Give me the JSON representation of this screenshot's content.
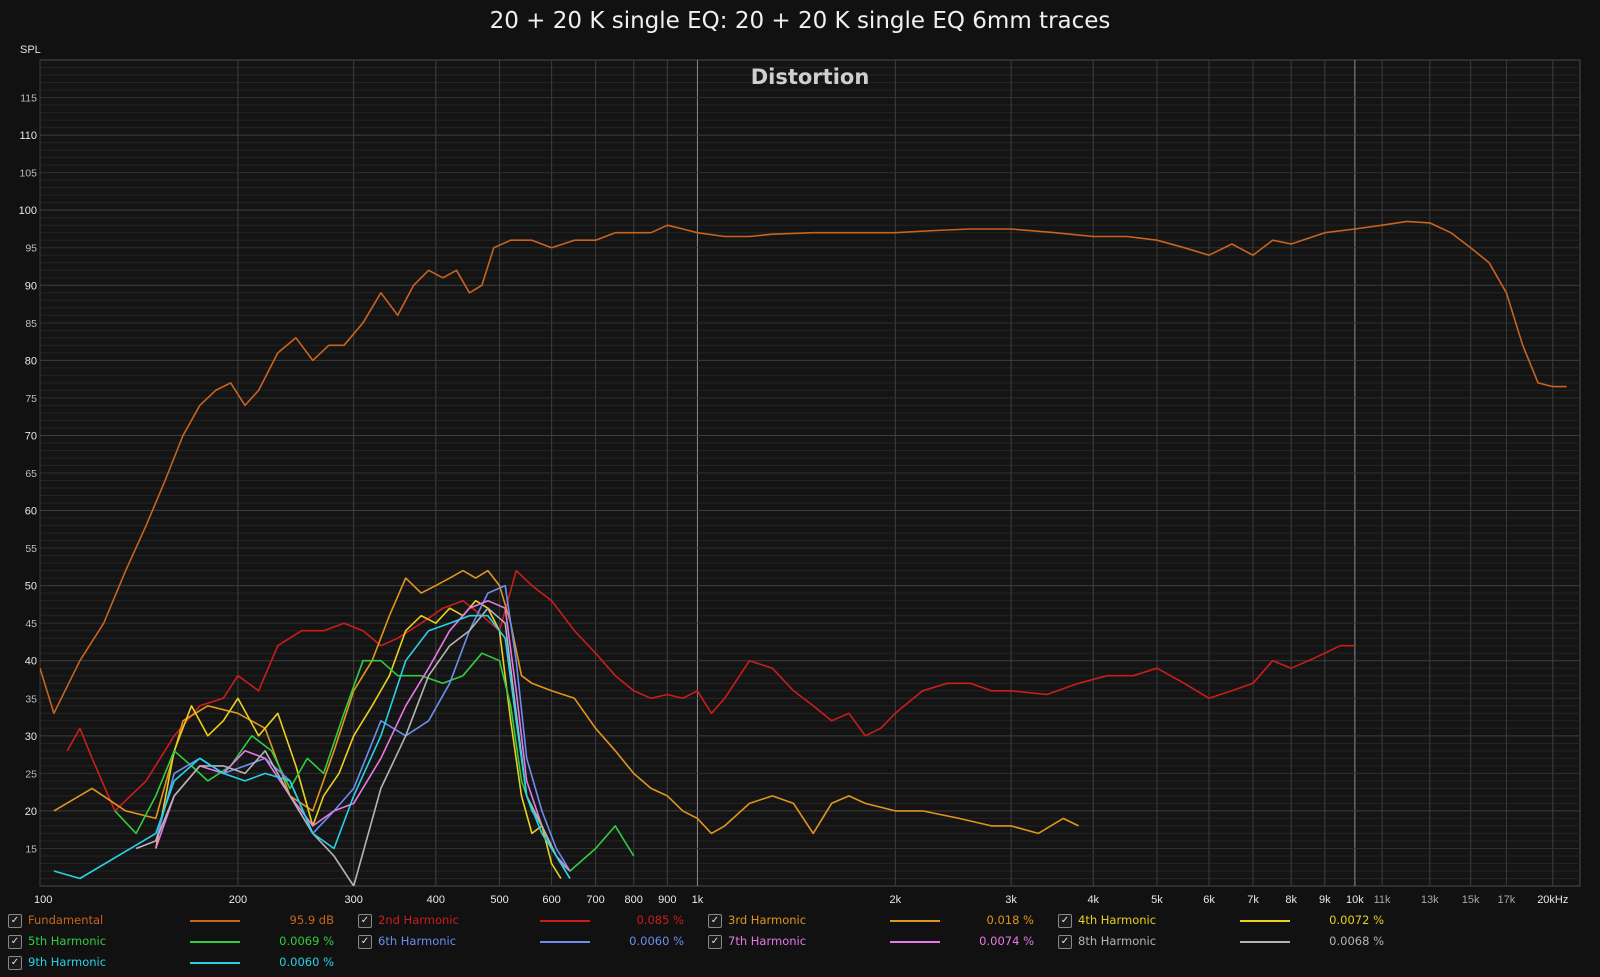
{
  "title": "20 + 20 K single EQ: 20 + 20 K single EQ 6mm traces",
  "chart_data": {
    "type": "line",
    "title": "Distortion",
    "ylabel": "SPL",
    "xunit": "kHz",
    "xscale": "log",
    "xlim": [
      100,
      22000
    ],
    "ylim": [
      10,
      120
    ],
    "grid": true,
    "legend_position": "bottom",
    "x_ticks": [
      {
        "value": 100,
        "label": "100"
      },
      {
        "value": 200,
        "label": "200"
      },
      {
        "value": 300,
        "label": "300"
      },
      {
        "value": 400,
        "label": "400"
      },
      {
        "value": 500,
        "label": "500"
      },
      {
        "value": 600,
        "label": "600"
      },
      {
        "value": 700,
        "label": "700"
      },
      {
        "value": 800,
        "label": "800"
      },
      {
        "value": 900,
        "label": "900"
      },
      {
        "value": 1000,
        "label": "1k"
      },
      {
        "value": 2000,
        "label": "2k"
      },
      {
        "value": 3000,
        "label": "3k"
      },
      {
        "value": 4000,
        "label": "4k"
      },
      {
        "value": 5000,
        "label": "5k"
      },
      {
        "value": 6000,
        "label": "6k"
      },
      {
        "value": 7000,
        "label": "7k"
      },
      {
        "value": 8000,
        "label": "8k"
      },
      {
        "value": 9000,
        "label": "9k"
      },
      {
        "value": 10000,
        "label": "10k"
      },
      {
        "value": 11000,
        "label": "11k"
      },
      {
        "value": 13000,
        "label": "13k"
      },
      {
        "value": 15000,
        "label": "15k"
      },
      {
        "value": 17000,
        "label": "17k"
      },
      {
        "value": 20000,
        "label": "20kHz"
      }
    ],
    "y_ticks": [
      15,
      20,
      25,
      30,
      35,
      40,
      45,
      50,
      55,
      60,
      65,
      70,
      75,
      80,
      85,
      90,
      95,
      100,
      105,
      110,
      115
    ],
    "series": [
      {
        "name": "Fundamental",
        "value": "95.9 dB",
        "color": "#c8641e",
        "x": [
          100,
          105,
          115,
          125,
          135,
          145,
          155,
          165,
          175,
          185,
          195,
          205,
          215,
          230,
          245,
          260,
          275,
          290,
          310,
          330,
          350,
          370,
          390,
          410,
          430,
          450,
          470,
          490,
          520,
          560,
          600,
          650,
          700,
          750,
          800,
          850,
          900,
          950,
          1000,
          1100,
          1200,
          1300,
          1500,
          1700,
          2000,
          2300,
          2600,
          3000,
          3500,
          4000,
          4500,
          5000,
          5500,
          6000,
          6500,
          7000,
          7500,
          8000,
          9000,
          10000,
          11000,
          12000,
          13000,
          14000,
          15000,
          16000,
          17000,
          18000,
          19000,
          20000,
          21000
        ],
        "y": [
          39,
          33,
          40,
          45,
          52,
          58,
          64,
          70,
          74,
          76,
          77,
          74,
          76,
          81,
          83,
          80,
          82,
          82,
          85,
          89,
          86,
          90,
          92,
          91,
          92,
          89,
          90,
          95,
          96,
          96,
          95,
          96,
          96,
          97,
          97,
          97,
          98,
          97.5,
          97,
          96.5,
          96.5,
          96.8,
          97,
          97,
          97,
          97.3,
          97.5,
          97.5,
          97,
          96.5,
          96.5,
          96,
          95,
          94,
          95.5,
          94,
          96,
          95.5,
          97,
          97.5,
          98,
          98.5,
          98.3,
          97,
          95,
          93,
          89,
          82,
          77,
          76.5,
          76.5
        ]
      },
      {
        "name": "2nd Harmonic",
        "value": "0.085 %",
        "color": "#cc1c1c",
        "x": [
          110,
          115,
          120,
          130,
          145,
          160,
          175,
          190,
          200,
          215,
          230,
          250,
          270,
          290,
          310,
          330,
          350,
          380,
          410,
          440,
          470,
          500,
          530,
          560,
          600,
          650,
          700,
          750,
          800,
          850,
          900,
          950,
          1000,
          1050,
          1100,
          1200,
          1300,
          1400,
          1500,
          1600,
          1700,
          1800,
          1900,
          2000,
          2200,
          2400,
          2600,
          2800,
          3000,
          3400,
          3800,
          4200,
          4600,
          5000,
          5500,
          6000,
          6500,
          7000,
          7500,
          8000,
          8500,
          9000,
          9500,
          10000
        ],
        "y": [
          28,
          31,
          27,
          20,
          24,
          30,
          34,
          35,
          38,
          36,
          42,
          44,
          44,
          45,
          44,
          42,
          43,
          45,
          47,
          48,
          46,
          44,
          52,
          50,
          48,
          44,
          41,
          38,
          36,
          35,
          35.5,
          35,
          36,
          33,
          35,
          40,
          39,
          36,
          34,
          32,
          33,
          30,
          31,
          33,
          36,
          37,
          37,
          36,
          36,
          35.5,
          37,
          38,
          38,
          39,
          37,
          35,
          36,
          37,
          40,
          39,
          40,
          41,
          42,
          42
        ]
      },
      {
        "name": "3rd Harmonic",
        "value": "0.018 %",
        "color": "#e0951c",
        "x": [
          105,
          120,
          135,
          150,
          165,
          180,
          200,
          220,
          240,
          260,
          280,
          300,
          320,
          340,
          360,
          380,
          400,
          420,
          440,
          460,
          480,
          500,
          520,
          540,
          560,
          600,
          650,
          700,
          750,
          800,
          850,
          900,
          950,
          1000,
          1050,
          1100,
          1200,
          1300,
          1400,
          1500,
          1600,
          1700,
          1800,
          2000,
          2200,
          2500,
          2800,
          3000,
          3300,
          3600,
          3800
        ],
        "y": [
          20,
          23,
          20,
          19,
          32,
          34,
          33,
          31,
          22,
          20,
          28,
          36,
          40,
          46,
          51,
          49,
          50,
          51,
          52,
          51,
          52,
          50,
          45,
          38,
          37,
          36,
          35,
          31,
          28,
          25,
          23,
          22,
          20,
          19,
          17,
          18,
          21,
          22,
          21,
          17,
          21,
          22,
          21,
          20,
          20,
          19,
          18,
          18,
          17,
          19,
          18
        ]
      },
      {
        "name": "4th Harmonic",
        "value": "0.0072 %",
        "color": "#e8d020",
        "x": [
          150,
          160,
          170,
          180,
          190,
          200,
          215,
          230,
          245,
          260,
          270,
          285,
          300,
          320,
          340,
          360,
          380,
          400,
          420,
          440,
          460,
          480,
          500,
          520,
          540,
          560,
          580,
          600,
          620
        ],
        "y": [
          15,
          28,
          34,
          30,
          32,
          35,
          30,
          33,
          26,
          18,
          22,
          25,
          30,
          34,
          38,
          44,
          46,
          45,
          47,
          46,
          48,
          47,
          44,
          32,
          22,
          17,
          18,
          13,
          11
        ]
      },
      {
        "name": "5th Harmonic",
        "value": "0.0069 %",
        "color": "#32cc40",
        "x": [
          130,
          140,
          150,
          160,
          170,
          180,
          195,
          210,
          225,
          240,
          255,
          270,
          290,
          310,
          330,
          350,
          380,
          410,
          440,
          470,
          500,
          520,
          540,
          560,
          580,
          600,
          620,
          640,
          700,
          750,
          800
        ],
        "y": [
          20,
          17,
          22,
          28,
          26,
          24,
          26,
          30,
          28,
          23,
          27,
          25,
          33,
          40,
          40,
          38,
          38,
          37,
          38,
          41,
          40,
          34,
          24,
          20,
          18,
          15,
          13,
          12,
          15,
          18,
          14
        ]
      },
      {
        "name": "6th Harmonic",
        "value": "0.0060 %",
        "color": "#6c8ef0",
        "x": [
          150,
          160,
          175,
          190,
          205,
          220,
          240,
          260,
          280,
          300,
          330,
          360,
          390,
          420,
          450,
          480,
          510,
          530,
          550,
          580,
          610,
          640
        ],
        "y": [
          16,
          25,
          27,
          25,
          26,
          27,
          24,
          17,
          20,
          23,
          32,
          30,
          32,
          37,
          44,
          49,
          50,
          40,
          27,
          20,
          15,
          12
        ]
      },
      {
        "name": "7th Harmonic",
        "value": "0.0074 %",
        "color": "#e878e8",
        "x": [
          150,
          160,
          175,
          190,
          205,
          220,
          240,
          260,
          280,
          300,
          330,
          360,
          390,
          420,
          450,
          480,
          510,
          530,
          550,
          580,
          610,
          640
        ],
        "y": [
          15,
          22,
          26,
          25,
          28,
          27,
          22,
          18,
          20,
          21,
          27,
          34,
          39,
          44,
          47,
          48,
          47,
          36,
          24,
          18,
          14,
          12
        ]
      },
      {
        "name": "8th Harmonic",
        "value": "0.0068 %",
        "color": "#b4b4b4",
        "x": [
          140,
          150,
          160,
          175,
          190,
          205,
          220,
          240,
          260,
          280,
          300,
          330,
          360,
          390,
          420,
          450,
          480,
          510,
          530,
          550,
          580,
          610,
          640
        ],
        "y": [
          15,
          16,
          22,
          26,
          26,
          25,
          28,
          22,
          17,
          14,
          10,
          23,
          30,
          38,
          42,
          44,
          47,
          45,
          33,
          22,
          18,
          14,
          11
        ]
      },
      {
        "name": "9th Harmonic",
        "value": "0.0060 %",
        "color": "#28d2e6",
        "x": [
          105,
          115,
          150,
          160,
          175,
          190,
          205,
          220,
          240,
          260,
          280,
          300,
          330,
          360,
          390,
          420,
          450,
          480,
          510,
          530,
          550,
          580,
          610,
          640
        ],
        "y": [
          12,
          11,
          17,
          24,
          27,
          25,
          24,
          25,
          24,
          17,
          15,
          22,
          30,
          40,
          44,
          45,
          46,
          46,
          43,
          32,
          22,
          17,
          14,
          11
        ]
      }
    ]
  }
}
